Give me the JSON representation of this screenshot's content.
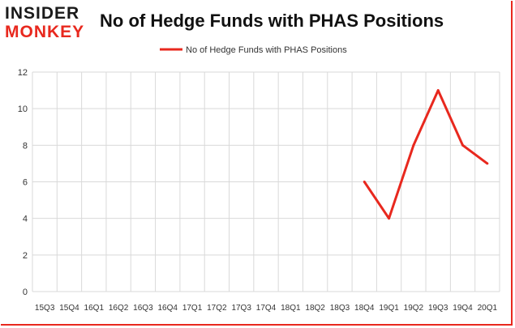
{
  "brand": {
    "line1": "INSIDER",
    "line2": "MONKEY"
  },
  "colors": {
    "series": "#e8281e",
    "grid": "#d9d9d9",
    "brand_red": "#e8281e"
  },
  "chart_data": {
    "type": "line",
    "title": "No of Hedge Funds with PHAS Positions",
    "xlabel": "",
    "ylabel": "",
    "ylim": [
      0,
      12
    ],
    "yticks": [
      0,
      2,
      4,
      6,
      8,
      10,
      12
    ],
    "grid": true,
    "legend_position": "top-center",
    "categories": [
      "15Q3",
      "15Q4",
      "16Q1",
      "16Q2",
      "16Q3",
      "16Q4",
      "17Q1",
      "17Q2",
      "17Q3",
      "17Q4",
      "18Q1",
      "18Q2",
      "18Q3",
      "18Q4",
      "19Q1",
      "19Q2",
      "19Q3",
      "19Q4",
      "20Q1"
    ],
    "series": [
      {
        "name": "No of Hedge Funds with PHAS Positions",
        "values": [
          null,
          null,
          null,
          null,
          null,
          null,
          null,
          null,
          null,
          null,
          null,
          null,
          null,
          6,
          4,
          8,
          11,
          8,
          7
        ]
      }
    ]
  }
}
